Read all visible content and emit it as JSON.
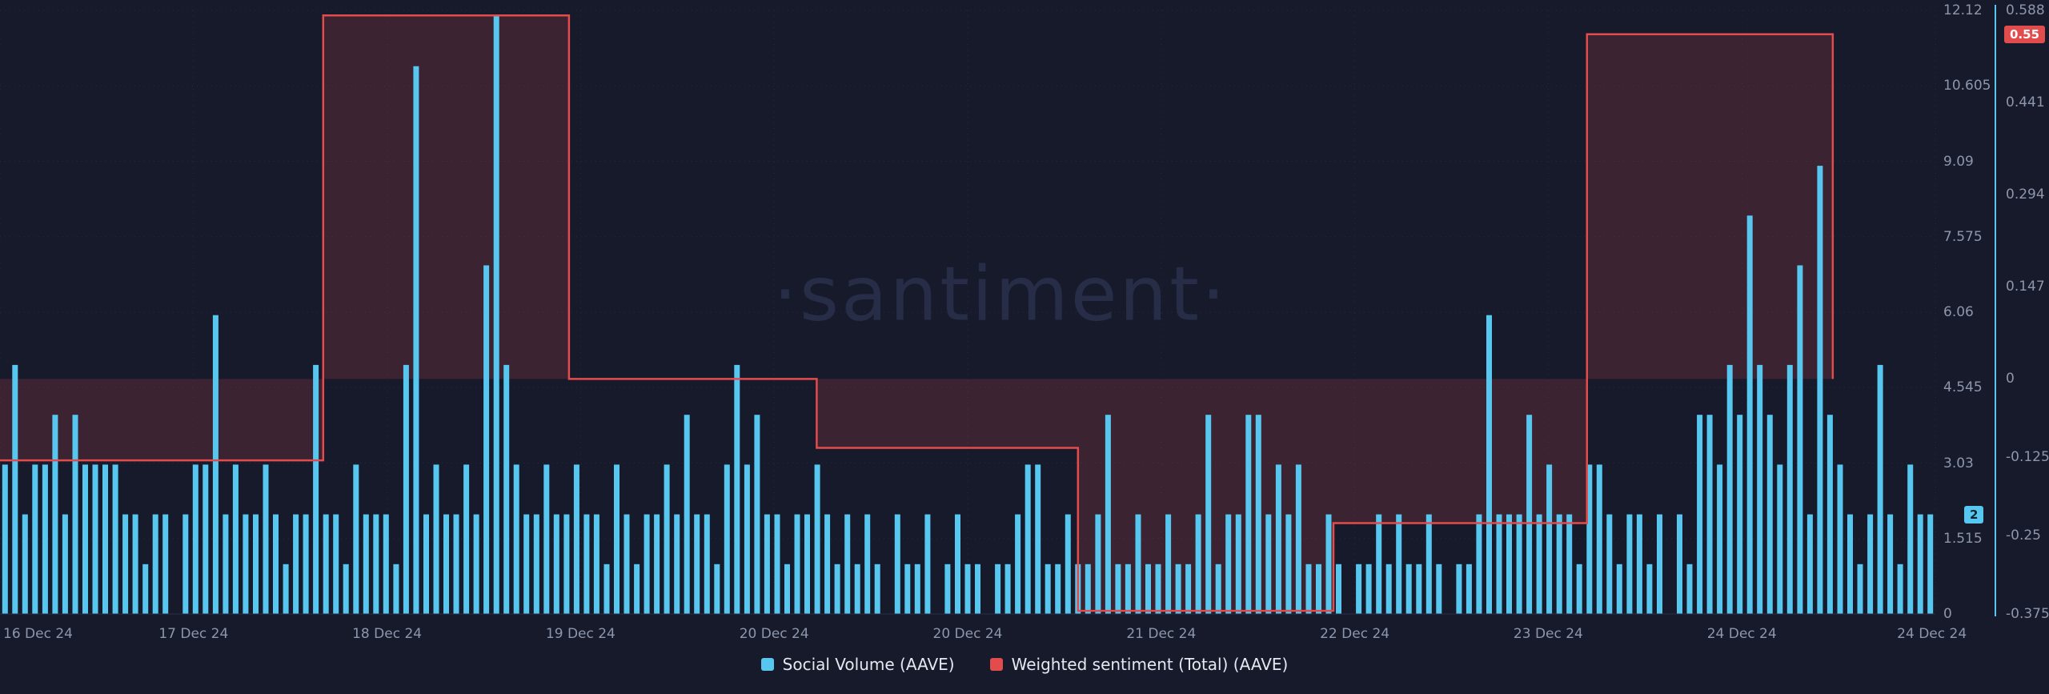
{
  "watermark": "·santiment·",
  "legend": {
    "social_volume": {
      "label": "Social Volume (AAVE)",
      "color": "#57c7f0"
    },
    "weighted_sentiment": {
      "label": "Weighted sentiment (Total) (AAVE)",
      "color": "#e34c4c"
    }
  },
  "current_values": {
    "social_volume": "2",
    "weighted_sentiment": "0.55"
  },
  "colors": {
    "background": "#161a2b",
    "grid": "#242a44",
    "baseline": "#2a3049",
    "axis_text": "#8e96ab",
    "bar": "#57c7f0",
    "sentiment_line": "#e34c4c",
    "sentiment_fill": "rgba(227,76,76,0.18)",
    "watermark": "#272d46"
  },
  "chart_data": {
    "type": "mixed",
    "title": "",
    "x_tick_labels": [
      "16 Dec 24",
      "17 Dec 24",
      "18 Dec 24",
      "19 Dec 24",
      "20 Dec 24",
      "20 Dec 24",
      "21 Dec 24",
      "22 Dec 24",
      "23 Dec 24",
      "24 Dec 24",
      "24 Dec 24"
    ],
    "volume_axis": {
      "ticks": [
        "12.12",
        "10.605",
        "9.09",
        "7.575",
        "6.06",
        "4.545",
        "3.03",
        "1.515",
        "0"
      ],
      "max": 12.12,
      "min": 0
    },
    "sentiment_axis": {
      "ticks": [
        "0.588",
        "0.441",
        "0.294",
        "0.147",
        "0",
        "-0.125",
        "-0.25",
        "-0.375"
      ],
      "max": 0.588,
      "min": -0.375
    },
    "series": [
      {
        "name": "Social Volume (AAVE)",
        "type": "bar",
        "color": "#57c7f0",
        "values": [
          3,
          5,
          2,
          3,
          3,
          4,
          2,
          4,
          3,
          3,
          3,
          3,
          2,
          2,
          1,
          2,
          2,
          0,
          2,
          3,
          3,
          6,
          2,
          3,
          2,
          2,
          3,
          2,
          1,
          2,
          2,
          5,
          2,
          2,
          1,
          3,
          2,
          2,
          2,
          1,
          5,
          11,
          2,
          3,
          2,
          2,
          3,
          2,
          7,
          12,
          5,
          3,
          2,
          2,
          3,
          2,
          2,
          3,
          2,
          2,
          1,
          3,
          2,
          1,
          2,
          2,
          3,
          2,
          4,
          2,
          2,
          1,
          3,
          5,
          3,
          4,
          2,
          2,
          1,
          2,
          2,
          3,
          2,
          1,
          2,
          1,
          2,
          1,
          0,
          2,
          1,
          1,
          2,
          0,
          1,
          2,
          1,
          1,
          0,
          1,
          1,
          2,
          3,
          3,
          1,
          1,
          2,
          1,
          1,
          2,
          4,
          1,
          1,
          2,
          1,
          1,
          2,
          1,
          1,
          2,
          4,
          1,
          2,
          2,
          4,
          4,
          2,
          3,
          2,
          3,
          1,
          1,
          2,
          1,
          0,
          1,
          1,
          2,
          1,
          2,
          1,
          1,
          2,
          1,
          0,
          1,
          1,
          2,
          6,
          2,
          2,
          2,
          4,
          2,
          3,
          2,
          2,
          1,
          3,
          3,
          2,
          1,
          2,
          2,
          1,
          2,
          0,
          2,
          1,
          4,
          4,
          3,
          5,
          4,
          8,
          5,
          4,
          3,
          5,
          7,
          2,
          9,
          4,
          3,
          2,
          1,
          2,
          5,
          2,
          1,
          3,
          2,
          2
        ]
      },
      {
        "name": "Weighted sentiment (Total) (AAVE)",
        "type": "step_area",
        "color": "#e34c4c",
        "fill": "rgba(227,76,76,0.18)",
        "baseline": 0,
        "points": [
          {
            "x": 0.0,
            "v": -0.13
          },
          {
            "x": 0.167,
            "v": 0.58
          },
          {
            "x": 0.294,
            "v": 0.0
          },
          {
            "x": 0.422,
            "v": -0.11
          },
          {
            "x": 0.557,
            "v": -0.37
          },
          {
            "x": 0.689,
            "v": -0.23
          },
          {
            "x": 0.82,
            "v": 0.55
          }
        ],
        "end_x": 0.947
      }
    ]
  }
}
